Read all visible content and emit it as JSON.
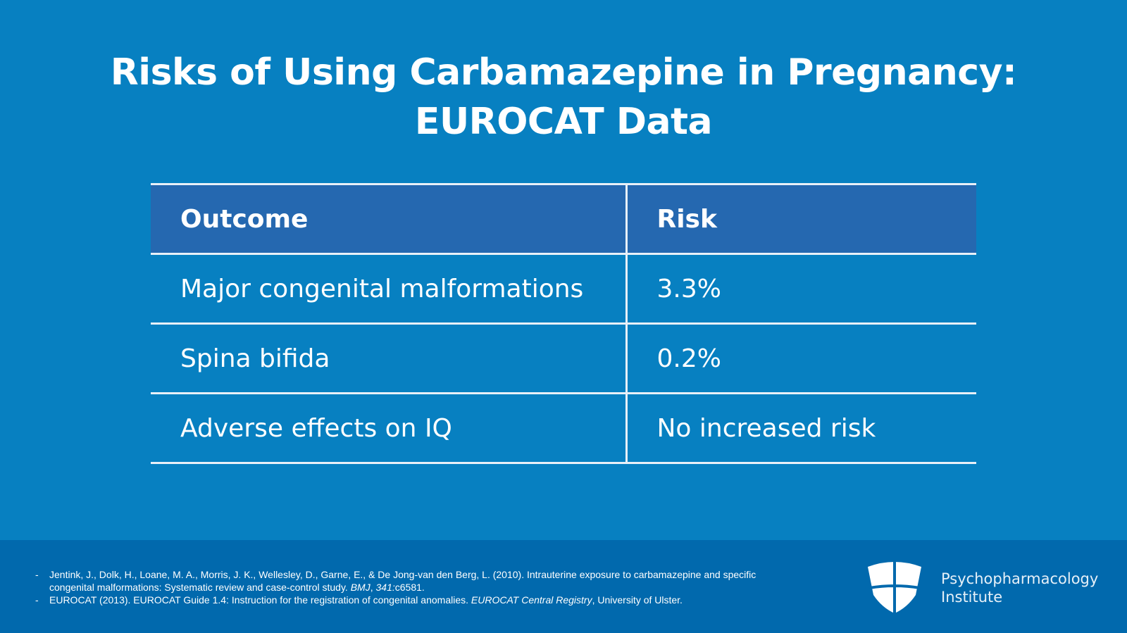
{
  "title_line1": "Risks of Using Carbamazepine in Pregnancy:",
  "title_line2": "EUROCAT Data",
  "table": {
    "headers": [
      "Outcome",
      "Risk"
    ],
    "rows": [
      [
        "Major congenital malformations",
        "3.3%"
      ],
      [
        "Spina bifida",
        "0.2%"
      ],
      [
        "Adverse effects on IQ",
        "No increased risk"
      ]
    ]
  },
  "references": [
    {
      "dash": "-",
      "pre": "Jentink, J., Dolk, H., Loane, M. A., Morris, J. K., Wellesley, D., Garne, E., & De Jong-van den Berg, L. (2010). Intrauterine exposure to carbamazepine and specific congenital malformations: Systematic review and case-control study. ",
      "italic": "BMJ",
      "mid": ", ",
      "italic2": "341:",
      "post": "c6581."
    },
    {
      "dash": "-",
      "pre": "EUROCAT (2013). EUROCAT Guide 1.4: Instruction for the registration of congenital anomalies. ",
      "italic": "EUROCAT Central Registry",
      "mid": ", University of Ulster.",
      "italic2": "",
      "post": ""
    }
  ],
  "brand": {
    "line1": "Psychopharmacology",
    "line2": "Institute"
  }
}
